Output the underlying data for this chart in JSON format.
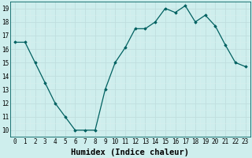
{
  "x": [
    0,
    1,
    2,
    3,
    4,
    5,
    6,
    7,
    8,
    9,
    10,
    11,
    12,
    13,
    14,
    15,
    16,
    17,
    18,
    19,
    20,
    21,
    22,
    23
  ],
  "y": [
    16.5,
    16.5,
    15.0,
    13.5,
    12.0,
    11.0,
    10.0,
    10.0,
    10.0,
    13.0,
    15.0,
    16.1,
    17.5,
    17.5,
    18.0,
    19.0,
    18.7,
    19.2,
    18.0,
    18.5,
    17.7,
    16.3,
    15.0,
    14.7
  ],
  "line_color": "#006060",
  "marker": "D",
  "marker_size": 1.8,
  "bg_color": "#ceeeed",
  "grid_major_color": "#c0dede",
  "grid_minor_color": "#d8eeee",
  "xlabel": "Humidex (Indice chaleur)",
  "xlim": [
    -0.5,
    23.5
  ],
  "ylim": [
    9.5,
    19.5
  ],
  "yticks": [
    10,
    11,
    12,
    13,
    14,
    15,
    16,
    17,
    18,
    19
  ],
  "xticks": [
    0,
    1,
    2,
    3,
    4,
    5,
    6,
    7,
    8,
    9,
    10,
    11,
    12,
    13,
    14,
    15,
    16,
    17,
    18,
    19,
    20,
    21,
    22,
    23
  ],
  "tick_fontsize": 5.5,
  "xlabel_fontsize": 7.5,
  "line_width": 0.9
}
